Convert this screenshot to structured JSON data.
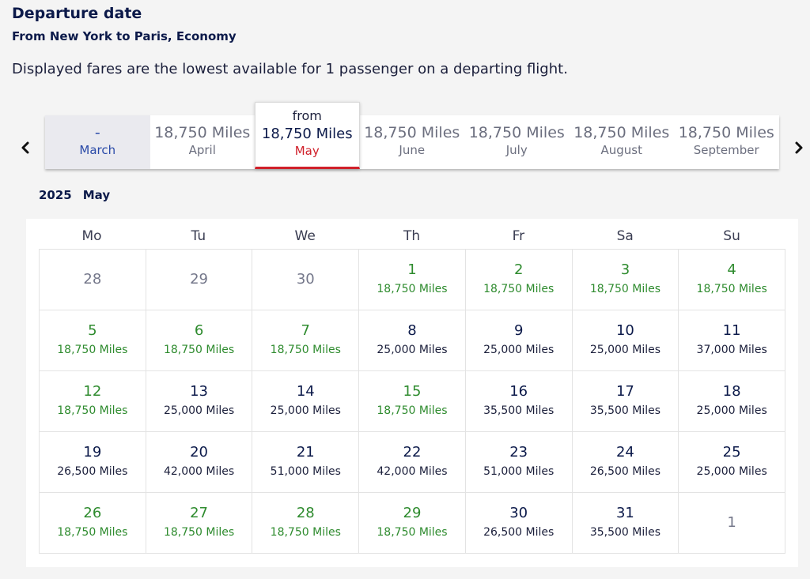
{
  "header": {
    "title": "Departure date",
    "subtitle": "From New York to Paris, Economy",
    "notice": "Displayed fares are the lowest available for 1 passenger on a departing flight."
  },
  "month_tabs": [
    {
      "price": "-",
      "month": "March",
      "state": "disabled"
    },
    {
      "price": "18,750 Miles",
      "month": "April",
      "state": "normal"
    },
    {
      "from": "from",
      "price": "18,750 Miles",
      "month": "May",
      "state": "selected"
    },
    {
      "price": "18,750 Miles",
      "month": "June",
      "state": "normal"
    },
    {
      "price": "18,750 Miles",
      "month": "July",
      "state": "normal"
    },
    {
      "price": "18,750 Miles",
      "month": "August",
      "state": "normal"
    },
    {
      "price": "18,750 Miles",
      "month": "September",
      "state": "normal"
    }
  ],
  "nav": {
    "prev_icon": "chevron-left-icon",
    "next_icon": "chevron-right-icon"
  },
  "calendar": {
    "year": "2025",
    "month": "May",
    "weekdays": [
      "Mo",
      "Tu",
      "We",
      "Th",
      "Fr",
      "Sa",
      "Su"
    ],
    "weeks": [
      [
        {
          "day": "28",
          "fare": "",
          "type": "outside"
        },
        {
          "day": "29",
          "fare": "",
          "type": "outside"
        },
        {
          "day": "30",
          "fare": "",
          "type": "outside"
        },
        {
          "day": "1",
          "fare": "18,750 Miles",
          "type": "low"
        },
        {
          "day": "2",
          "fare": "18,750 Miles",
          "type": "low"
        },
        {
          "day": "3",
          "fare": "18,750 Miles",
          "type": "low"
        },
        {
          "day": "4",
          "fare": "18,750 Miles",
          "type": "low"
        }
      ],
      [
        {
          "day": "5",
          "fare": "18,750 Miles",
          "type": "low"
        },
        {
          "day": "6",
          "fare": "18,750 Miles",
          "type": "low"
        },
        {
          "day": "7",
          "fare": "18,750 Miles",
          "type": "low"
        },
        {
          "day": "8",
          "fare": "25,000 Miles",
          "type": "normal"
        },
        {
          "day": "9",
          "fare": "25,000 Miles",
          "type": "normal"
        },
        {
          "day": "10",
          "fare": "25,000 Miles",
          "type": "normal"
        },
        {
          "day": "11",
          "fare": "37,000 Miles",
          "type": "normal"
        }
      ],
      [
        {
          "day": "12",
          "fare": "18,750 Miles",
          "type": "low"
        },
        {
          "day": "13",
          "fare": "25,000 Miles",
          "type": "normal"
        },
        {
          "day": "14",
          "fare": "25,000 Miles",
          "type": "normal"
        },
        {
          "day": "15",
          "fare": "18,750 Miles",
          "type": "low"
        },
        {
          "day": "16",
          "fare": "35,500 Miles",
          "type": "normal"
        },
        {
          "day": "17",
          "fare": "35,500 Miles",
          "type": "normal"
        },
        {
          "day": "18",
          "fare": "25,000 Miles",
          "type": "normal"
        }
      ],
      [
        {
          "day": "19",
          "fare": "26,500 Miles",
          "type": "normal"
        },
        {
          "day": "20",
          "fare": "42,000 Miles",
          "type": "normal"
        },
        {
          "day": "21",
          "fare": "51,000 Miles",
          "type": "normal"
        },
        {
          "day": "22",
          "fare": "42,000 Miles",
          "type": "normal"
        },
        {
          "day": "23",
          "fare": "51,000 Miles",
          "type": "normal"
        },
        {
          "day": "24",
          "fare": "26,500 Miles",
          "type": "normal"
        },
        {
          "day": "25",
          "fare": "25,000 Miles",
          "type": "normal"
        }
      ],
      [
        {
          "day": "26",
          "fare": "18,750 Miles",
          "type": "low"
        },
        {
          "day": "27",
          "fare": "18,750 Miles",
          "type": "low"
        },
        {
          "day": "28",
          "fare": "18,750 Miles",
          "type": "low"
        },
        {
          "day": "29",
          "fare": "18,750 Miles",
          "type": "low"
        },
        {
          "day": "30",
          "fare": "26,500 Miles",
          "type": "normal"
        },
        {
          "day": "31",
          "fare": "35,500 Miles",
          "type": "normal"
        },
        {
          "day": "1",
          "fare": "",
          "type": "outside"
        }
      ]
    ]
  },
  "colors": {
    "low_fare": "#2e8b2e",
    "selected_accent": "#d0202a",
    "brand": "#0c1a4a"
  }
}
